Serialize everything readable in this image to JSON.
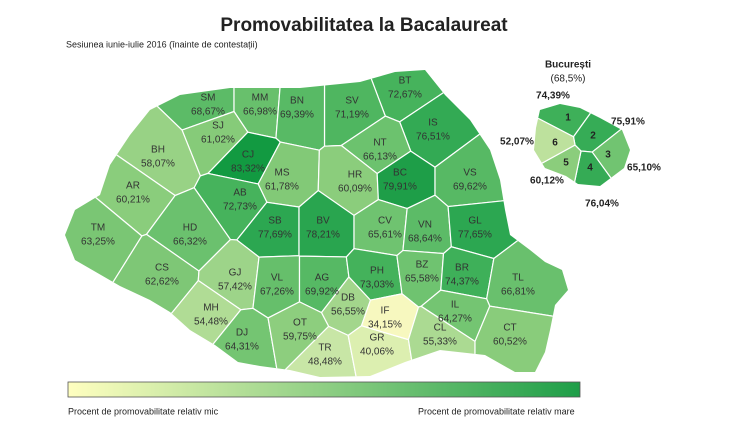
{
  "title": "Promovabilitatea la Bacalaureat",
  "subtitle": "Sesiunea iunie-iulie 2016 (înainte de contestații)",
  "counties": [
    {
      "code": "SM",
      "label": "68,67%",
      "color": "#5cbb67"
    },
    {
      "code": "MM",
      "label": "66,98%",
      "color": "#68c06c"
    },
    {
      "code": "BT",
      "label": "72,67%",
      "color": "#46b35c"
    },
    {
      "code": "SV",
      "label": "71,19%",
      "color": "#4fb660"
    },
    {
      "code": "BN",
      "label": "69,39%",
      "color": "#58ba65"
    },
    {
      "code": "SJ",
      "label": "61,02%",
      "color": "#86cb79"
    },
    {
      "code": "CJ",
      "label": "83,32%",
      "color": "#129a41"
    },
    {
      "code": "BH",
      "label": "58,07%",
      "color": "#98d285"
    },
    {
      "code": "IS",
      "label": "76,51%",
      "color": "#33aa54"
    },
    {
      "code": "NT",
      "label": "66,13%",
      "color": "#6cc26e"
    },
    {
      "code": "MS",
      "label": "61,78%",
      "color": "#82c977"
    },
    {
      "code": "HR",
      "label": "60,09%",
      "color": "#8bcd7c"
    },
    {
      "code": "BC",
      "label": "79,91%",
      "color": "#1e9e48"
    },
    {
      "code": "VS",
      "label": "69,62%",
      "color": "#57b964"
    },
    {
      "code": "AR",
      "label": "60,21%",
      "color": "#8acd7c"
    },
    {
      "code": "AB",
      "label": "72,73%",
      "color": "#46b35c"
    },
    {
      "code": "SB",
      "label": "77,69%",
      "color": "#2ca751"
    },
    {
      "code": "BV",
      "label": "78,21%",
      "color": "#29a54f"
    },
    {
      "code": "CV",
      "label": "65,61%",
      "color": "#6fc370"
    },
    {
      "code": "VN",
      "label": "68,64%",
      "color": "#5cbb67"
    },
    {
      "code": "GL",
      "label": "77,65%",
      "color": "#2ca751"
    },
    {
      "code": "TM",
      "label": "63,25%",
      "color": "#7ac674"
    },
    {
      "code": "HD",
      "label": "66,32%",
      "color": "#6bc16e"
    },
    {
      "code": "CS",
      "label": "62,62%",
      "color": "#7ec776"
    },
    {
      "code": "GJ",
      "label": "57,42%",
      "color": "#9dd489"
    },
    {
      "code": "VL",
      "label": "67,26%",
      "color": "#66bf6b"
    },
    {
      "code": "AG",
      "label": "69,92%",
      "color": "#56b964"
    },
    {
      "code": "DB",
      "label": "56,55%",
      "color": "#a3d68c"
    },
    {
      "code": "PH",
      "label": "73,03%",
      "color": "#44b25b"
    },
    {
      "code": "BZ",
      "label": "65,58%",
      "color": "#6fc370"
    },
    {
      "code": "BR",
      "label": "74,37%",
      "color": "#3eb059"
    },
    {
      "code": "TL",
      "label": "66,81%",
      "color": "#69c06d"
    },
    {
      "code": "MH",
      "label": "54,48%",
      "color": "#b0dc95"
    },
    {
      "code": "DJ",
      "label": "64,31%",
      "color": "#74c572"
    },
    {
      "code": "OT",
      "label": "59,75%",
      "color": "#8dce7e"
    },
    {
      "code": "TR",
      "label": "48,48%",
      "color": "#c8e6a6"
    },
    {
      "code": "GR",
      "label": "40,06%",
      "color": "#dcefb0"
    },
    {
      "code": "IF",
      "label": "34,15%",
      "color": "#f7f8bf"
    },
    {
      "code": "IL",
      "label": "64,27%",
      "color": "#74c572"
    },
    {
      "code": "CL",
      "label": "55,33%",
      "color": "#abda92"
    },
    {
      "code": "CT",
      "label": "60,52%",
      "color": "#89cc7b"
    }
  ],
  "bucharest": {
    "name": "București",
    "total": "(68,5%)",
    "sectors": [
      {
        "number": "1",
        "label": "74,39%",
        "color": "#3eb059"
      },
      {
        "number": "2",
        "label": "75,91%",
        "color": "#36ac56"
      },
      {
        "number": "3",
        "label": "65,10%",
        "color": "#71c471"
      },
      {
        "number": "4",
        "label": "76,04%",
        "color": "#35ab55"
      },
      {
        "number": "5",
        "label": "60,12%",
        "color": "#8bcd7c"
      },
      {
        "number": "6",
        "label": "52,07%",
        "color": "#bde19d"
      }
    ]
  },
  "legend": {
    "low": "Procent de promovabilitate relativ mic",
    "high": "Procent de promovabilitate relativ mare"
  }
}
